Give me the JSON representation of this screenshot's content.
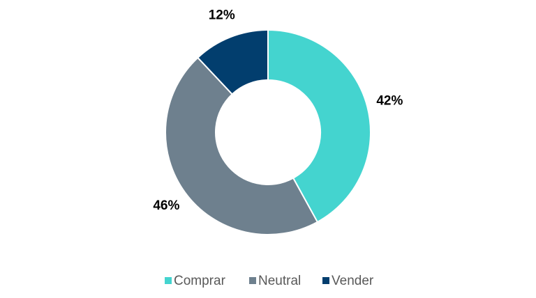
{
  "chart_data": {
    "type": "pie",
    "categories": [
      "Comprar",
      "Neutral",
      "Vender"
    ],
    "values": [
      42,
      46,
      12
    ],
    "value_labels": [
      "42%",
      "46%",
      "12%"
    ],
    "colors": [
      "#44d4cf",
      "#6e808e",
      "#023e6e"
    ],
    "donut": true,
    "legend": "bottom"
  }
}
